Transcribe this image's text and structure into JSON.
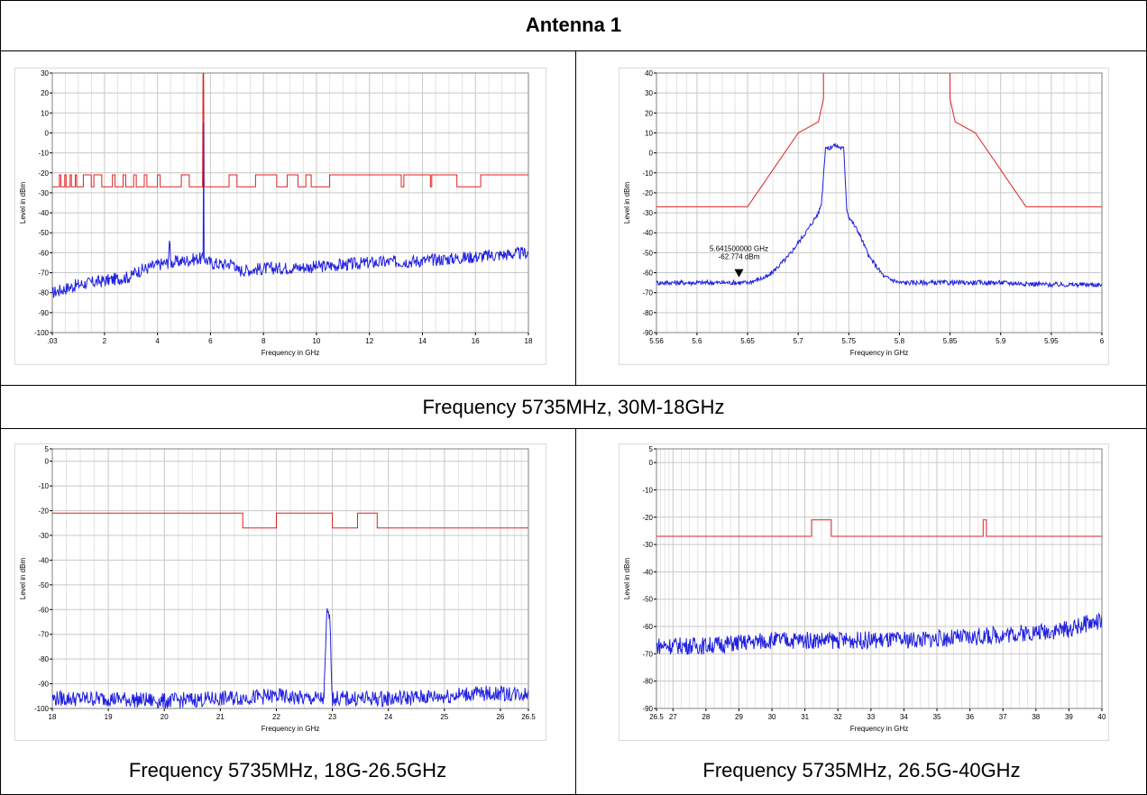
{
  "table": {
    "title": "Antenna 1",
    "caption_row1": "Frequency 5735MHz, 30M-18GHz",
    "caption_bottom_left": "Frequency 5735MHz, 18G-26.5GHz",
    "caption_bottom_right": "Frequency 5735MHz, 26.5G-40GHz"
  },
  "colors": {
    "limit": "#e02020",
    "trace": "#2020e0",
    "grid": "#c8c8c8"
  },
  "chart_data": [
    {
      "type": "line",
      "xlabel": "Frequency in GHz",
      "ylabel": "Level in dBm",
      "xlim": [
        0.03,
        18
      ],
      "ylim": [
        -100,
        30
      ],
      "xticks": [
        0.03,
        2,
        4,
        6,
        8,
        10,
        12,
        14,
        16,
        18
      ],
      "xtick_labels": [
        ".03",
        "2",
        "4",
        "6",
        "8",
        "10",
        "12",
        "14",
        "16",
        "18"
      ],
      "yticks": [
        -100,
        -90,
        -80,
        -70,
        -60,
        -50,
        -40,
        -30,
        -20,
        -10,
        0,
        10,
        20,
        30
      ],
      "ytick_labels": [
        "-100",
        "-90",
        "-80",
        "-70",
        "-60",
        "-50",
        "-40",
        "-30",
        "-20",
        "-10",
        "0",
        "10",
        "20",
        "30"
      ],
      "series": [
        {
          "role": "limit",
          "x": [
            0.03,
            0.3,
            0.3,
            0.35,
            0.35,
            0.5,
            0.5,
            0.55,
            0.55,
            0.7,
            0.7,
            0.75,
            0.75,
            0.9,
            0.9,
            0.95,
            0.95,
            1.2,
            1.2,
            1.5,
            1.5,
            1.6,
            1.6,
            1.9,
            1.9,
            2.3,
            2.3,
            2.4,
            2.4,
            2.7,
            2.7,
            2.8,
            2.8,
            3.1,
            3.1,
            3.2,
            3.2,
            3.5,
            3.5,
            3.6,
            3.6,
            4.0,
            4.0,
            4.1,
            4.1,
            4.9,
            4.9,
            5.2,
            5.2,
            5.7,
            5.7,
            5.72,
            5.74,
            5.76,
            5.8,
            5.8,
            6.0,
            6.0,
            6.7,
            6.7,
            7.0,
            7.0,
            7.7,
            7.7,
            8.5,
            8.5,
            8.9,
            8.9,
            9.3,
            9.3,
            9.6,
            9.6,
            9.8,
            9.8,
            10.5,
            10.5,
            13.2,
            13.2,
            13.3,
            13.3,
            14.3,
            14.3,
            14.35,
            14.35,
            15.3,
            15.3,
            16.2,
            16.2,
            18
          ],
          "y": [
            -27,
            -27,
            -21,
            -21,
            -27,
            -27,
            -21,
            -21,
            -27,
            -27,
            -21,
            -21,
            -27,
            -27,
            -21,
            -21,
            -27,
            -27,
            -21,
            -21,
            -27,
            -27,
            -21,
            -21,
            -27,
            -27,
            -21,
            -21,
            -27,
            -27,
            -21,
            -21,
            -27,
            -27,
            -21,
            -21,
            -27,
            -27,
            -21,
            -21,
            -27,
            -27,
            -21,
            -21,
            -27,
            -27,
            -21,
            -21,
            -27,
            -27,
            -27,
            30,
            30,
            -27,
            -27,
            -27,
            -27,
            -27,
            -27,
            -21,
            -21,
            -27,
            -27,
            -21,
            -21,
            -27,
            -27,
            -21,
            -21,
            -27,
            -27,
            -21,
            -21,
            -27,
            -27,
            -21,
            -21,
            -27,
            -27,
            -21,
            -21,
            -27,
            -27,
            -21,
            -21,
            -27,
            -27,
            -21,
            -21
          ]
        },
        {
          "role": "trace",
          "x": [
            0.03,
            1,
            2,
            3,
            3.1,
            4,
            4.4,
            4.45,
            4.5,
            5,
            5.5,
            5.72,
            5.74,
            5.76,
            6,
            6.5,
            6.9,
            7,
            8,
            10,
            12,
            14,
            16,
            18
          ],
          "y": [
            -80,
            -76,
            -74,
            -72,
            -70,
            -66,
            -65,
            -54,
            -65,
            -64,
            -63,
            -63,
            5,
            -63,
            -65,
            -66,
            -65,
            -69,
            -68,
            -67,
            -65,
            -64,
            -62,
            -60
          ]
        }
      ]
    },
    {
      "type": "line",
      "xlabel": "Frequency in GHz",
      "ylabel": "Level in dBm",
      "xlim": [
        5.56,
        6
      ],
      "ylim": [
        -90,
        40
      ],
      "xticks": [
        5.56,
        5.6,
        5.65,
        5.7,
        5.75,
        5.8,
        5.85,
        5.9,
        5.95,
        6
      ],
      "xtick_labels": [
        "5.56",
        "5.6",
        "5.65",
        "5.7",
        "5.75",
        "5.8",
        "5.85",
        "5.9",
        "5.95",
        "6"
      ],
      "yticks": [
        -90,
        -80,
        -70,
        -60,
        -50,
        -40,
        -30,
        -20,
        -10,
        0,
        10,
        20,
        30,
        40
      ],
      "ytick_labels": [
        "-90",
        "-80",
        "-70",
        "-60",
        "-50",
        "-40",
        "-30",
        "-20",
        "-10",
        "0",
        "10",
        "20",
        "30",
        "40"
      ],
      "annotations": [
        {
          "x": 5.6415,
          "y": -62.774,
          "label_line1": "5.641500000 GHz",
          "label_line2": "-62.774 dBm"
        }
      ],
      "series": [
        {
          "role": "limit",
          "x": [
            5.56,
            5.65,
            5.7,
            5.72,
            5.725,
            5.725,
            5.85,
            5.85,
            5.855,
            5.875,
            5.925,
            6
          ],
          "y": [
            -27,
            -27,
            10,
            15.6,
            27,
            40,
            40,
            27,
            15.6,
            10,
            -27,
            -27
          ]
        },
        {
          "role": "trace",
          "x": [
            5.56,
            5.6,
            5.65,
            5.67,
            5.69,
            5.71,
            5.72,
            5.723,
            5.727,
            5.73,
            5.735,
            5.74,
            5.745,
            5.748,
            5.75,
            5.76,
            5.77,
            5.785,
            5.8,
            5.85,
            5.9,
            5.95,
            6
          ],
          "y": [
            -65,
            -65,
            -65,
            -62,
            -52,
            -38,
            -30,
            -25,
            3,
            2,
            4,
            3,
            2,
            -28,
            -32,
            -40,
            -52,
            -62,
            -65,
            -65,
            -65,
            -66,
            -66
          ]
        }
      ]
    },
    {
      "type": "line",
      "xlabel": "Frequency in GHz",
      "ylabel": "Level in dBm",
      "xlim": [
        18,
        26.5
      ],
      "ylim": [
        -100,
        5
      ],
      "xticks": [
        18,
        19,
        20,
        21,
        22,
        23,
        24,
        25,
        26,
        26.5
      ],
      "xtick_labels": [
        "18",
        "19",
        "20",
        "21",
        "22",
        "23",
        "24",
        "25",
        "26",
        "26.5"
      ],
      "yticks": [
        -100,
        -90,
        -80,
        -70,
        -60,
        -50,
        -40,
        -30,
        -20,
        -10,
        0,
        5
      ],
      "ytick_labels": [
        "-100",
        "-90",
        "-80",
        "-70",
        "-60",
        "-50",
        "-40",
        "-30",
        "-20",
        "-10",
        "0",
        "5"
      ],
      "series": [
        {
          "role": "limit",
          "x": [
            18,
            21.4,
            21.4,
            22.0,
            22.0,
            23.0,
            23.0,
            23.45,
            23.45,
            23.8,
            23.8,
            26.5
          ],
          "y": [
            -21,
            -21,
            -27,
            -27,
            -21,
            -21,
            -27,
            -27,
            -21,
            -21,
            -27,
            -27
          ]
        },
        {
          "role": "trace",
          "x": [
            18,
            19,
            20,
            21,
            22,
            22.5,
            22.85,
            22.9,
            22.95,
            23.0,
            23.05,
            23.5,
            24,
            25,
            25.5,
            26,
            26.5
          ],
          "y": [
            -96,
            -96,
            -97,
            -96,
            -95,
            -96,
            -96,
            -62,
            -62,
            -96,
            -96,
            -96,
            -96,
            -95,
            -94,
            -94,
            -94
          ]
        }
      ]
    },
    {
      "type": "line",
      "xlabel": "Frequency in GHz",
      "ylabel": "Level in dBm",
      "xlim": [
        26.5,
        40
      ],
      "ylim": [
        -90,
        5
      ],
      "xticks": [
        26.5,
        27,
        28,
        29,
        30,
        31,
        32,
        33,
        34,
        35,
        36,
        37,
        38,
        39,
        40
      ],
      "xtick_labels": [
        "26.5",
        "27",
        "28",
        "29",
        "30",
        "31",
        "32",
        "33",
        "34",
        "35",
        "36",
        "37",
        "38",
        "39",
        "40"
      ],
      "yticks": [
        -90,
        -80,
        -70,
        -60,
        -50,
        -40,
        -30,
        -20,
        -10,
        0,
        5
      ],
      "ytick_labels": [
        "-90",
        "-80",
        "-70",
        "-60",
        "-50",
        "-40",
        "-30",
        "-20",
        "-10",
        "0",
        "5"
      ],
      "series": [
        {
          "role": "limit",
          "x": [
            26.5,
            31.2,
            31.2,
            31.8,
            31.8,
            36.4,
            36.4,
            36.5,
            36.5,
            40
          ],
          "y": [
            -27,
            -27,
            -21,
            -21,
            -27,
            -27,
            -21,
            -21,
            -27,
            -27
          ]
        },
        {
          "role": "trace",
          "x": [
            26.5,
            28,
            30,
            32,
            34,
            36,
            37,
            38,
            39,
            39.5,
            40
          ],
          "y": [
            -67,
            -67,
            -65,
            -65,
            -65,
            -64,
            -63,
            -62,
            -61,
            -59,
            -58
          ]
        }
      ]
    }
  ]
}
